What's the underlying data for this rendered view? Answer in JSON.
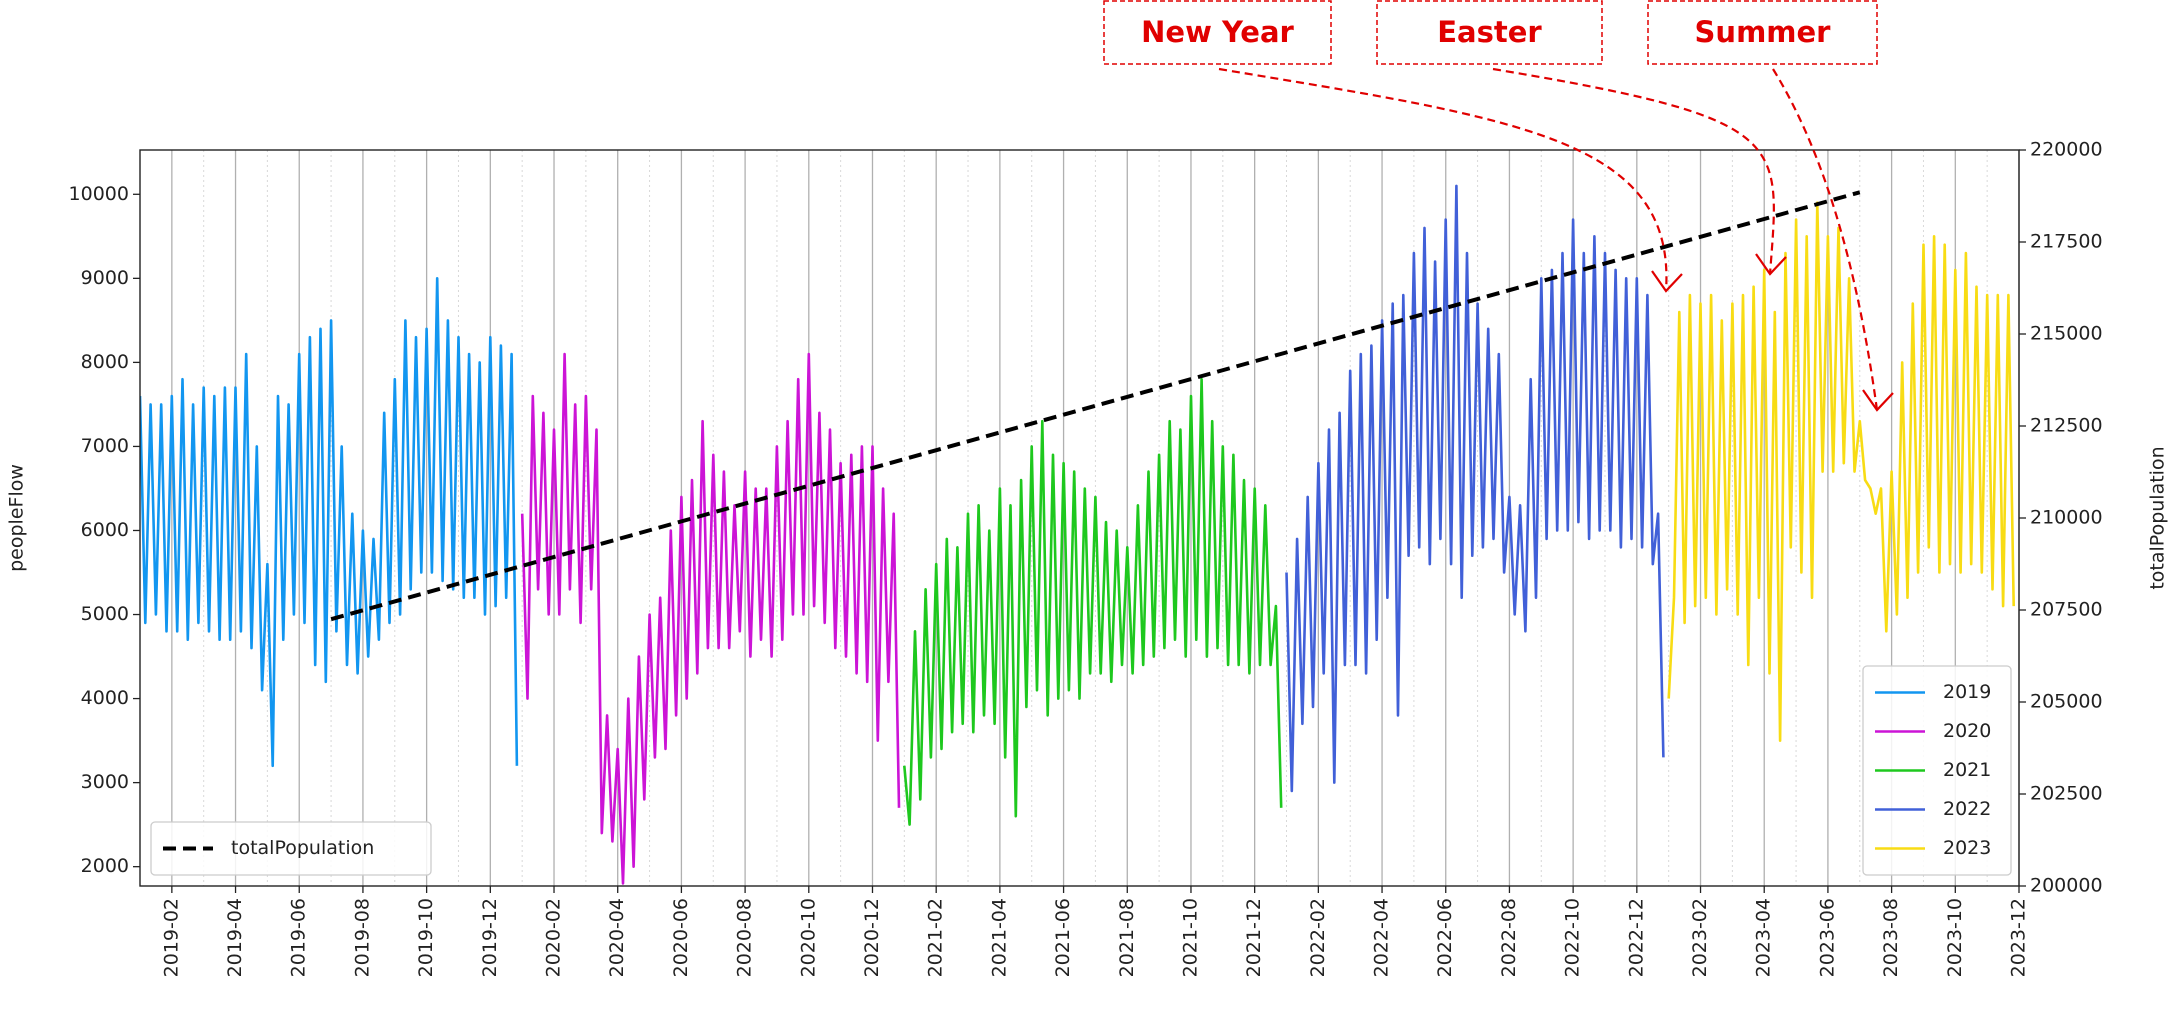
{
  "chart_data": {
    "type": "line",
    "ylabel": "peopleFlow",
    "y2label": "totalPopulation",
    "xlim": [
      "2019-01",
      "2023-12"
    ],
    "xticks": [
      "2019-02",
      "2019-04",
      "2019-06",
      "2019-08",
      "2019-10",
      "2019-12",
      "2020-02",
      "2020-04",
      "2020-06",
      "2020-08",
      "2020-10",
      "2020-12",
      "2021-02",
      "2021-04",
      "2021-06",
      "2021-08",
      "2021-10",
      "2021-12",
      "2022-02",
      "2022-04",
      "2022-06",
      "2022-08",
      "2022-10",
      "2022-12",
      "2023-02",
      "2023-04",
      "2023-06",
      "2023-08",
      "2023-10",
      "2023-12"
    ],
    "xminorticks": [
      "2019-03",
      "2019-05",
      "2019-07",
      "2019-09",
      "2019-11",
      "2020-01",
      "2020-03",
      "2020-05",
      "2020-07",
      "2020-09",
      "2020-11",
      "2021-01",
      "2021-03",
      "2021-05",
      "2021-07",
      "2021-09",
      "2021-11",
      "2022-01",
      "2022-03",
      "2022-05",
      "2022-07",
      "2022-09",
      "2022-11",
      "2023-01",
      "2023-03",
      "2023-05",
      "2023-07",
      "2023-09",
      "2023-11"
    ],
    "ylim": [
      1770,
      10527
    ],
    "yticks": [
      2000,
      3000,
      4000,
      5000,
      6000,
      7000,
      8000,
      9000,
      10000
    ],
    "y2lim": [
      200000,
      220000
    ],
    "y2ticks": [
      200000,
      202500,
      205000,
      207500,
      210000,
      212500,
      215000,
      217500,
      220000
    ],
    "grid": true,
    "legend": "lower right",
    "legend_y2": "lower left",
    "annotations": [
      {
        "text": "New Year"
      },
      {
        "text": "Easter"
      },
      {
        "text": "Summer"
      }
    ],
    "series": [
      {
        "name": "2019",
        "color": "#1296f0",
        "x": [
          "2019-01",
          "2019-01",
          "2019-01",
          "2019-01",
          "2019-01",
          "2019-01",
          "2019-02",
          "2019-02",
          "2019-02",
          "2019-02",
          "2019-02",
          "2019-02",
          "2019-03",
          "2019-03",
          "2019-03",
          "2019-03",
          "2019-03",
          "2019-03",
          "2019-04",
          "2019-04",
          "2019-04",
          "2019-04",
          "2019-04",
          "2019-04",
          "2019-05",
          "2019-05",
          "2019-05",
          "2019-05",
          "2019-05",
          "2019-05",
          "2019-06",
          "2019-06",
          "2019-06",
          "2019-06",
          "2019-06",
          "2019-06",
          "2019-07",
          "2019-07",
          "2019-07",
          "2019-07",
          "2019-07",
          "2019-07",
          "2019-08",
          "2019-08",
          "2019-08",
          "2019-08",
          "2019-08",
          "2019-08",
          "2019-09",
          "2019-09",
          "2019-09",
          "2019-09",
          "2019-09",
          "2019-09",
          "2019-10",
          "2019-10",
          "2019-10",
          "2019-10",
          "2019-10",
          "2019-10",
          "2019-11",
          "2019-11",
          "2019-11",
          "2019-11",
          "2019-11",
          "2019-11",
          "2019-12",
          "2019-12",
          "2019-12",
          "2019-12",
          "2019-12",
          "2019-12"
        ],
        "values": [
          7600,
          4900,
          7500,
          5000,
          7500,
          4800,
          7600,
          4800,
          7800,
          4700,
          7500,
          4900,
          7700,
          4800,
          7600,
          4700,
          7700,
          4700,
          7700,
          4800,
          8100,
          4600,
          7000,
          4100,
          5600,
          3200,
          7600,
          4700,
          7500,
          5000,
          8100,
          4900,
          8300,
          4400,
          8400,
          4200,
          8500,
          4800,
          7000,
          4400,
          6200,
          4300,
          6000,
          4500,
          5900,
          4700,
          7400,
          4900,
          7800,
          5000,
          8500,
          5300,
          8300,
          5500,
          8400,
          5500,
          9000,
          5400,
          8500,
          5300,
          8300,
          5200,
          8100,
          5200,
          8000,
          5000,
          8300,
          5100,
          8200,
          5200,
          8100,
          3200
        ]
      },
      {
        "name": "2020",
        "color": "#cc14d6",
        "x": [
          "2020-01",
          "2020-01",
          "2020-01",
          "2020-01",
          "2020-01",
          "2020-01",
          "2020-02",
          "2020-02",
          "2020-02",
          "2020-02",
          "2020-02",
          "2020-02",
          "2020-03",
          "2020-03",
          "2020-03",
          "2020-03",
          "2020-03",
          "2020-03",
          "2020-04",
          "2020-04",
          "2020-04",
          "2020-04",
          "2020-04",
          "2020-04",
          "2020-05",
          "2020-05",
          "2020-05",
          "2020-05",
          "2020-05",
          "2020-05",
          "2020-06",
          "2020-06",
          "2020-06",
          "2020-06",
          "2020-06",
          "2020-06",
          "2020-07",
          "2020-07",
          "2020-07",
          "2020-07",
          "2020-07",
          "2020-07",
          "2020-08",
          "2020-08",
          "2020-08",
          "2020-08",
          "2020-08",
          "2020-08",
          "2020-09",
          "2020-09",
          "2020-09",
          "2020-09",
          "2020-09",
          "2020-09",
          "2020-10",
          "2020-10",
          "2020-10",
          "2020-10",
          "2020-10",
          "2020-10",
          "2020-11",
          "2020-11",
          "2020-11",
          "2020-11",
          "2020-11",
          "2020-11",
          "2020-12",
          "2020-12",
          "2020-12",
          "2020-12",
          "2020-12",
          "2020-12"
        ],
        "values": [
          6200,
          4000,
          7600,
          5300,
          7400,
          5000,
          7200,
          5000,
          8100,
          5300,
          7500,
          4900,
          7600,
          5300,
          7200,
          2400,
          3800,
          2300,
          3400,
          1800,
          4000,
          2000,
          4500,
          2800,
          5000,
          3300,
          5200,
          3400,
          6000,
          3800,
          6400,
          4000,
          6600,
          4300,
          7300,
          4600,
          6900,
          4600,
          6700,
          4600,
          6300,
          4800,
          6700,
          4500,
          6500,
          4700,
          6500,
          4500,
          7000,
          4700,
          7300,
          5000,
          7800,
          5000,
          8100,
          5100,
          7400,
          4900,
          7200,
          4600,
          6800,
          4500,
          6900,
          4300,
          7000,
          4200,
          7000,
          3500,
          6500,
          4200,
          6200,
          2700
        ]
      },
      {
        "name": "2021",
        "color": "#1ec81e",
        "x": [
          "2021-01",
          "2021-01",
          "2021-01",
          "2021-01",
          "2021-01",
          "2021-01",
          "2021-02",
          "2021-02",
          "2021-02",
          "2021-02",
          "2021-02",
          "2021-02",
          "2021-03",
          "2021-03",
          "2021-03",
          "2021-03",
          "2021-03",
          "2021-03",
          "2021-04",
          "2021-04",
          "2021-04",
          "2021-04",
          "2021-04",
          "2021-04",
          "2021-05",
          "2021-05",
          "2021-05",
          "2021-05",
          "2021-05",
          "2021-05",
          "2021-06",
          "2021-06",
          "2021-06",
          "2021-06",
          "2021-06",
          "2021-06",
          "2021-07",
          "2021-07",
          "2021-07",
          "2021-07",
          "2021-07",
          "2021-07",
          "2021-08",
          "2021-08",
          "2021-08",
          "2021-08",
          "2021-08",
          "2021-08",
          "2021-09",
          "2021-09",
          "2021-09",
          "2021-09",
          "2021-09",
          "2021-09",
          "2021-10",
          "2021-10",
          "2021-10",
          "2021-10",
          "2021-10",
          "2021-10",
          "2021-11",
          "2021-11",
          "2021-11",
          "2021-11",
          "2021-11",
          "2021-11",
          "2021-12",
          "2021-12",
          "2021-12",
          "2021-12",
          "2021-12",
          "2021-12"
        ],
        "values": [
          3200,
          2500,
          4800,
          2800,
          5300,
          3300,
          5600,
          3400,
          5900,
          3600,
          5800,
          3700,
          6200,
          3600,
          6300,
          3800,
          6000,
          3700,
          6500,
          3300,
          6300,
          2600,
          6600,
          3900,
          7000,
          4100,
          7300,
          3800,
          6900,
          4000,
          6800,
          4100,
          6700,
          4000,
          6500,
          4300,
          6400,
          4300,
          6100,
          4200,
          6000,
          4400,
          5800,
          4300,
          6300,
          4400,
          6700,
          4500,
          6900,
          4600,
          7300,
          4700,
          7200,
          4500,
          7600,
          4700,
          7800,
          4500,
          7300,
          4600,
          7000,
          4400,
          6900,
          4400,
          6600,
          4300,
          6500,
          4400,
          6300,
          4400,
          5100,
          2700
        ]
      },
      {
        "name": "2022",
        "color": "#4160d8",
        "x": [
          "2022-01",
          "2022-01",
          "2022-01",
          "2022-01",
          "2022-01",
          "2022-01",
          "2022-02",
          "2022-02",
          "2022-02",
          "2022-02",
          "2022-02",
          "2022-02",
          "2022-03",
          "2022-03",
          "2022-03",
          "2022-03",
          "2022-03",
          "2022-03",
          "2022-04",
          "2022-04",
          "2022-04",
          "2022-04",
          "2022-04",
          "2022-04",
          "2022-05",
          "2022-05",
          "2022-05",
          "2022-05",
          "2022-05",
          "2022-05",
          "2022-06",
          "2022-06",
          "2022-06",
          "2022-06",
          "2022-06",
          "2022-06",
          "2022-07",
          "2022-07",
          "2022-07",
          "2022-07",
          "2022-07",
          "2022-07",
          "2022-08",
          "2022-08",
          "2022-08",
          "2022-08",
          "2022-08",
          "2022-08",
          "2022-09",
          "2022-09",
          "2022-09",
          "2022-09",
          "2022-09",
          "2022-09",
          "2022-10",
          "2022-10",
          "2022-10",
          "2022-10",
          "2022-10",
          "2022-10",
          "2022-11",
          "2022-11",
          "2022-11",
          "2022-11",
          "2022-11",
          "2022-11",
          "2022-12",
          "2022-12",
          "2022-12",
          "2022-12",
          "2022-12",
          "2022-12"
        ],
        "values": [
          5500,
          2900,
          5900,
          3700,
          6400,
          3900,
          6800,
          4300,
          7200,
          3000,
          7400,
          4400,
          7900,
          4400,
          8100,
          4300,
          8200,
          4700,
          8500,
          5200,
          8700,
          3800,
          8800,
          5700,
          9300,
          5800,
          9600,
          5600,
          9200,
          5900,
          9700,
          5600,
          10100,
          5200,
          9300,
          5700,
          8700,
          5800,
          8400,
          5900,
          8100,
          5500,
          6400,
          5000,
          6300,
          4800,
          7800,
          5200,
          9000,
          5900,
          9100,
          6000,
          9300,
          6000,
          9700,
          6100,
          9300,
          5900,
          9500,
          6000,
          9300,
          6000,
          9100,
          5800,
          9000,
          5900,
          9000,
          5800,
          8800,
          5600,
          6200,
          3300
        ]
      },
      {
        "name": "2023",
        "color": "#f8dc14",
        "x": [
          "2023-01",
          "2023-01",
          "2023-01",
          "2023-01",
          "2023-01",
          "2023-01",
          "2023-02",
          "2023-02",
          "2023-02",
          "2023-02",
          "2023-02",
          "2023-02",
          "2023-03",
          "2023-03",
          "2023-03",
          "2023-03",
          "2023-03",
          "2023-03",
          "2023-04",
          "2023-04",
          "2023-04",
          "2023-04",
          "2023-04",
          "2023-04",
          "2023-05",
          "2023-05",
          "2023-05",
          "2023-05",
          "2023-05",
          "2023-05",
          "2023-06",
          "2023-06",
          "2023-06",
          "2023-06",
          "2023-06",
          "2023-06",
          "2023-07",
          "2023-07",
          "2023-07",
          "2023-07",
          "2023-07",
          "2023-07",
          "2023-08",
          "2023-08",
          "2023-08",
          "2023-08",
          "2023-08",
          "2023-08",
          "2023-09",
          "2023-09",
          "2023-09",
          "2023-09",
          "2023-09",
          "2023-09",
          "2023-10",
          "2023-10",
          "2023-10",
          "2023-10",
          "2023-10",
          "2023-10",
          "2023-11",
          "2023-11",
          "2023-11",
          "2023-11",
          "2023-11",
          "2023-11"
        ],
        "values": [
          4000,
          5200,
          8600,
          4900,
          8800,
          5100,
          8700,
          5200,
          8800,
          5000,
          8500,
          5300,
          8700,
          5000,
          8800,
          4400,
          8900,
          5200,
          9100,
          4300,
          8600,
          3500,
          9300,
          5800,
          9700,
          5500,
          9500,
          5200,
          9900,
          6700,
          9500,
          6700,
          9600,
          6800,
          9000,
          6700,
          7300,
          6600,
          6500,
          6200,
          6500,
          4800,
          6700,
          5000,
          8000,
          5200,
          8700,
          5500,
          9400,
          5800,
          9500,
          5500,
          9400,
          5600,
          9100,
          5500,
          9300,
          5600,
          8900,
          5500,
          8800,
          5300,
          8800,
          5100,
          8800,
          5100
        ]
      },
      {
        "name": "totalPopulation",
        "color": "#000000",
        "axis": "y2",
        "dashed": true,
        "x": [
          "2019-07",
          "2023-07"
        ],
        "values": [
          207250,
          218850
        ]
      }
    ]
  }
}
